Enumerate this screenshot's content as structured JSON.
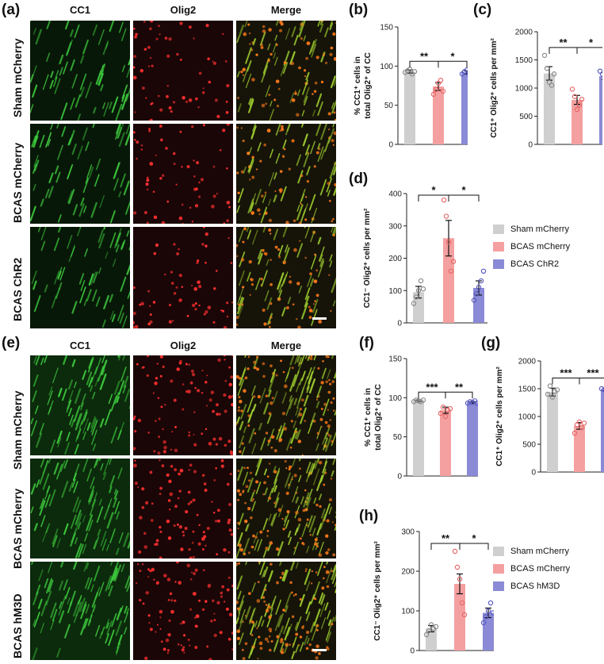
{
  "panel_labels": [
    "(a)",
    "(b)",
    "(c)",
    "(d)",
    "(e)",
    "(f)",
    "(g)",
    "(h)"
  ],
  "image_columns": [
    "CC1",
    "Olig2",
    "Merge"
  ],
  "rows_top": [
    "Sham mCherry",
    "BCAS mCherry",
    "BCAS ChR2"
  ],
  "rows_bottom": [
    "Sham mCherry",
    "BCAS mCherry",
    "BCAS hM3D"
  ],
  "colors": {
    "sham": "#cfcfcf",
    "bcas": "#f4a0a0",
    "treat": "#8a8ad6",
    "sham_dot": "#8a8a8a",
    "bcas_dot": "#e86868",
    "treat_dot": "#5a5ac0"
  },
  "legend_top": [
    "Sham mCherry",
    "BCAS mCherry",
    "BCAS ChR2"
  ],
  "legend_bottom": [
    "Sham mCherry",
    "BCAS mCherry",
    "BCAS hM3D"
  ],
  "chart_data": [
    {
      "id": "b",
      "type": "bar",
      "categories": [
        "Sham mCherry",
        "BCAS mCherry",
        "BCAS ChR2"
      ],
      "values": [
        93,
        74,
        92
      ],
      "errors": [
        2,
        5,
        2
      ],
      "points": [
        [
          92,
          94,
          96,
          90,
          93
        ],
        [
          64,
          70,
          78,
          82,
          68
        ],
        [
          90,
          93,
          95,
          89,
          94
        ]
      ],
      "ylabel_lines": [
        "% CC1⁺ cells in",
        "total Olig2⁺ of CC"
      ],
      "ylim": [
        0,
        150
      ],
      "yticks": [
        0,
        50,
        100,
        150
      ],
      "sig": [
        "**",
        "*"
      ]
    },
    {
      "id": "c",
      "type": "bar",
      "categories": [
        "Sham mCherry",
        "BCAS mCherry",
        "BCAS ChR2"
      ],
      "values": [
        1260,
        790,
        1210
      ],
      "errors": [
        120,
        80,
        60
      ],
      "points": [
        [
          1580,
          1350,
          1100,
          1050,
          1250
        ],
        [
          980,
          850,
          620,
          700,
          800
        ],
        [
          1300,
          1250,
          1150,
          1200,
          1150
        ]
      ],
      "ylabel_lines": [
        "CC1⁺ Olig2⁺ cells per mm²"
      ],
      "ylim": [
        0,
        2000
      ],
      "yticks": [
        0,
        500,
        1000,
        1500,
        2000
      ],
      "sig": [
        "**",
        "*"
      ]
    },
    {
      "id": "d",
      "type": "bar",
      "categories": [
        "Sham mCherry",
        "BCAS mCherry",
        "BCAS ChR2"
      ],
      "values": [
        95,
        262,
        108
      ],
      "errors": [
        18,
        55,
        22
      ],
      "points": [
        [
          60,
          80,
          100,
          130,
          105
        ],
        [
          380,
          330,
          250,
          160,
          190
        ],
        [
          70,
          90,
          110,
          130,
          160
        ]
      ],
      "ylabel_lines": [
        "CC1⁻ Olig2⁺ cells per mm²"
      ],
      "ylim": [
        0,
        400
      ],
      "yticks": [
        0,
        100,
        200,
        300,
        400
      ],
      "sig": [
        "*",
        "*"
      ]
    },
    {
      "id": "f",
      "type": "bar",
      "categories": [
        "Sham mCherry",
        "BCAS mCherry",
        "BCAS hM3D"
      ],
      "values": [
        96,
        84,
        94
      ],
      "errors": [
        1,
        4,
        1
      ],
      "points": [
        [
          95,
          97,
          96,
          95,
          97
        ],
        [
          80,
          88,
          76,
          84,
          86
        ],
        [
          93,
          95,
          94,
          96,
          93
        ]
      ],
      "ylabel_lines": [
        "% CC1⁺ cells in",
        "total Olig2⁺ of CC"
      ],
      "ylim": [
        0,
        150
      ],
      "yticks": [
        0,
        50,
        100,
        150
      ],
      "sig": [
        "***",
        "**"
      ]
    },
    {
      "id": "g",
      "type": "bar",
      "categories": [
        "Sham mCherry",
        "BCAS mCherry",
        "BCAS hM3D"
      ],
      "values": [
        1440,
        830,
        1490
      ],
      "errors": [
        70,
        60,
        20
      ],
      "points": [
        [
          1400,
          1550,
          1350,
          1450,
          1480
        ],
        [
          700,
          850,
          900,
          800,
          880
        ],
        [
          1500,
          1480,
          1470,
          1500,
          1490
        ]
      ],
      "ylabel_lines": [
        "CC1⁺ Olig2⁺ cells per mm²"
      ],
      "ylim": [
        0,
        2000
      ],
      "yticks": [
        0,
        500,
        1000,
        1500,
        2000
      ],
      "sig": [
        "***",
        "***"
      ]
    },
    {
      "id": "h",
      "type": "bar",
      "categories": [
        "Sham mCherry",
        "BCAS mCherry",
        "BCAS hM3D"
      ],
      "values": [
        55,
        168,
        95
      ],
      "errors": [
        8,
        25,
        12
      ],
      "points": [
        [
          40,
          50,
          65,
          55,
          60
        ],
        [
          250,
          210,
          180,
          120,
          90
        ],
        [
          70,
          85,
          100,
          120,
          95
        ]
      ],
      "ylabel_lines": [
        "CC1⁻ Olig2⁺ cells per mm²"
      ],
      "ylim": [
        0,
        300
      ],
      "yticks": [
        0,
        100,
        200,
        300
      ],
      "sig": [
        "**",
        "*"
      ]
    }
  ]
}
